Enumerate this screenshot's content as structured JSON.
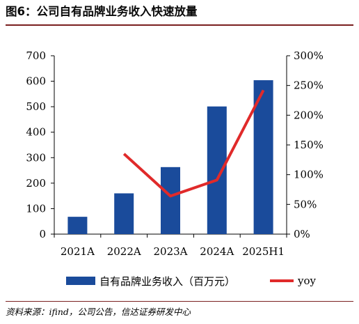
{
  "title": "图6：公司自有品牌业务收入快速放量",
  "source": "资料来源：ifind，公司公告，信达证券研发中心",
  "chart_data": {
    "type": "bar",
    "categories": [
      "2021A",
      "2022A",
      "2023A",
      "2024A",
      "2025H1"
    ],
    "series": [
      {
        "name": "自有品牌业务收入（百万元）",
        "type": "bar",
        "axis": "left",
        "color": "#1a4b9b",
        "values": [
          68,
          160,
          263,
          501,
          604
        ]
      },
      {
        "name": "yoy",
        "type": "line",
        "axis": "right",
        "color": "#e02a2a",
        "values": [
          null,
          135,
          64,
          91,
          242
        ]
      }
    ],
    "y_left": {
      "min": 0,
      "max": 700,
      "ticks": [
        0,
        100,
        200,
        300,
        400,
        500,
        600,
        700
      ],
      "tick_labels": [
        "0",
        "100",
        "200",
        "300",
        "400",
        "500",
        "600",
        "700"
      ]
    },
    "y_right": {
      "min": 0,
      "max": 300,
      "ticks": [
        0,
        50,
        100,
        150,
        200,
        250,
        300
      ],
      "tick_labels": [
        "0%",
        "50%",
        "100%",
        "150%",
        "200%",
        "250%",
        "300%"
      ]
    },
    "grid": false,
    "legend_position": "bottom"
  }
}
